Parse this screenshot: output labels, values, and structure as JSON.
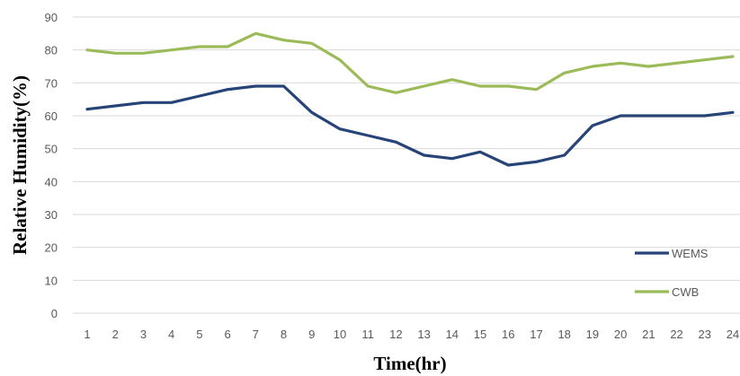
{
  "chart_data": {
    "type": "line",
    "xlabel": "Time(hr)",
    "ylabel": "Relative Humidity(%)",
    "ylim": [
      0,
      90
    ],
    "yticks": [
      0,
      10,
      20,
      30,
      40,
      50,
      60,
      70,
      80,
      90
    ],
    "categories": [
      "1",
      "2",
      "3",
      "4",
      "5",
      "6",
      "7",
      "8",
      "9",
      "10",
      "11",
      "12",
      "13",
      "14",
      "15",
      "16",
      "17",
      "18",
      "19",
      "20",
      "21",
      "22",
      "23",
      "24"
    ],
    "grid": true,
    "legend_position": "bottom-right",
    "series": [
      {
        "name": "WEMS",
        "color": "#264478",
        "values": [
          62,
          63,
          64,
          64,
          66,
          68,
          69,
          69,
          61,
          56,
          54,
          52,
          48,
          47,
          49,
          45,
          46,
          48,
          57,
          60,
          60,
          60,
          60,
          61
        ]
      },
      {
        "name": "CWB",
        "color": "#9bbb59",
        "values": [
          80,
          79,
          79,
          80,
          81,
          81,
          85,
          83,
          82,
          77,
          69,
          67,
          69,
          71,
          69,
          69,
          68,
          73,
          75,
          76,
          75,
          76,
          77,
          78
        ]
      }
    ]
  }
}
